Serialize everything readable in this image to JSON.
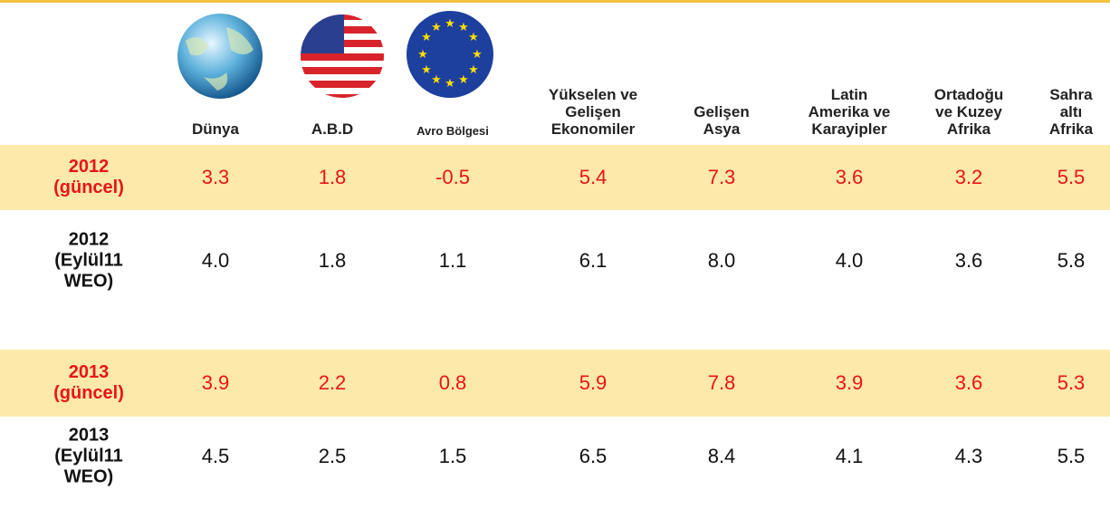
{
  "header": {
    "columns": [
      {
        "lines": [
          "Dünya"
        ]
      },
      {
        "lines": [
          "A.B.D"
        ]
      },
      {
        "lines": [
          "Avro Bölgesi"
        ]
      },
      {
        "lines": [
          "Yükselen ve",
          "Gelişen",
          "Ekonomiler"
        ]
      },
      {
        "lines": [
          "Gelişen",
          "Asya"
        ]
      },
      {
        "lines": [
          "Latin",
          "Amerika ve",
          "Karayipler"
        ]
      },
      {
        "lines": [
          "Ortadoğu",
          "ve Kuzey",
          "Afrika"
        ]
      },
      {
        "lines": [
          "Sahra",
          "altı",
          "Afrika"
        ]
      }
    ]
  },
  "table": {
    "rows": [
      {
        "label": [
          "2012",
          "(güncel)"
        ],
        "values": [
          "3.3",
          "1.8",
          "-0.5",
          "5.4",
          "7.3",
          "3.6",
          "3.2",
          "5.5"
        ]
      },
      {
        "label": [
          "2012",
          "(Eylül11",
          "WEO)"
        ],
        "values": [
          "4.0",
          "1.8",
          "1.1",
          "6.1",
          "8.0",
          "4.0",
          "3.6",
          "5.8"
        ]
      },
      {
        "label": [
          "2013",
          "(güncel)"
        ],
        "values": [
          "3.9",
          "2.2",
          "0.8",
          "5.9",
          "7.8",
          "3.9",
          "3.6",
          "5.3"
        ]
      },
      {
        "label": [
          "2013",
          "(Eylül11",
          "WEO)"
        ],
        "values": [
          "4.5",
          "2.5",
          "1.5",
          "6.5",
          "8.4",
          "4.1",
          "4.3",
          "5.5"
        ]
      }
    ]
  }
}
